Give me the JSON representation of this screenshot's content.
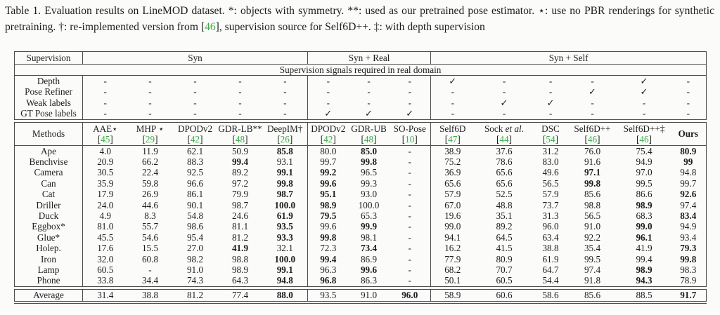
{
  "caption": {
    "segments": [
      {
        "text": "Table 1. Evaluation results on LineMOD dataset. *: objects with symmetry. **: used as our pretrained pose estimator. ⋆: use no PBR renderings for synthetic pretraining. †: re-implemented version from "
      },
      {
        "text": "["
      },
      {
        "text": "46"
      },
      {
        "text": "]"
      },
      {
        "text": ", supervision source for Self6D++. ‡: with depth supervision"
      }
    ]
  },
  "colors": {
    "cite_green": "#3aad4a",
    "rule_gray": "#4c4c4c"
  },
  "table": {
    "groups": [
      {
        "label": "Supervision",
        "span": 1
      },
      {
        "label": "Syn",
        "span": 5
      },
      {
        "label": "Syn + Real",
        "span": 3
      },
      {
        "label": "Syn + Self",
        "span": 6
      }
    ],
    "signals_note": "Supervision signals required in real domain",
    "signal_rows": [
      {
        "label": "Depth",
        "values": [
          "-",
          "-",
          "-",
          "-",
          "-",
          "-",
          "-",
          "-",
          "✓",
          "-",
          "-",
          "-",
          "✓",
          "-"
        ]
      },
      {
        "label": "Pose Refiner",
        "values": [
          "-",
          "-",
          "-",
          "-",
          "-",
          "-",
          "-",
          "-",
          "-",
          "-",
          "-",
          "✓",
          "✓",
          "-"
        ]
      },
      {
        "label": "Weak labels",
        "values": [
          "-",
          "-",
          "-",
          "-",
          "-",
          "-",
          "-",
          "-",
          "-",
          "✓",
          "✓",
          "-",
          "-",
          "-"
        ]
      },
      {
        "label": "GT Pose labels",
        "values": [
          "-",
          "-",
          "-",
          "-",
          "-",
          "✓",
          "✓",
          "✓",
          "-",
          "-",
          "-",
          "-",
          "-",
          "-"
        ]
      }
    ],
    "methods_label": "Methods",
    "methods": [
      {
        "name": "AAE⋆",
        "ref": "[45]"
      },
      {
        "name": "MHP ⋆",
        "ref": "[29]"
      },
      {
        "name": "DPODv2",
        "ref": "[42]"
      },
      {
        "name": "GDR-LB**",
        "ref": "[48]"
      },
      {
        "name": "DeepIM†",
        "ref": "[26]"
      },
      {
        "name": "DPODv2",
        "ref": "[42]"
      },
      {
        "name": "GDR-UB",
        "ref": "[48]"
      },
      {
        "name": "SO-Pose",
        "ref": "[10]"
      },
      {
        "name": "Self6D",
        "ref": "[47]"
      },
      {
        "name": "Sock",
        "name_italic": "et al.",
        "ref": "[44]"
      },
      {
        "name": "DSC",
        "ref": "[54]"
      },
      {
        "name": "Self6D++",
        "ref": "[46]"
      },
      {
        "name": "Self6D++‡",
        "ref": "[46]"
      },
      {
        "name": "Ours",
        "ref": "",
        "bold": true
      }
    ],
    "object_rows": [
      {
        "label": "Ape",
        "values": [
          "4.0",
          "11.9",
          "62.1",
          "50.9",
          "85.8",
          "80.0",
          "85.0",
          "-",
          "38.9",
          "37.6",
          "31.2",
          "76.0",
          "75.4",
          "80.9"
        ],
        "bold": [
          0,
          0,
          0,
          0,
          1,
          0,
          1,
          0,
          0,
          0,
          0,
          0,
          0,
          1
        ]
      },
      {
        "label": "Benchvise",
        "values": [
          "20.9",
          "66.2",
          "88.3",
          "99.4",
          "93.1",
          "99.7",
          "99.8",
          "-",
          "75.2",
          "78.6",
          "83.0",
          "91.6",
          "94.9",
          "99"
        ],
        "bold": [
          0,
          0,
          0,
          1,
          0,
          0,
          1,
          0,
          0,
          0,
          0,
          0,
          0,
          1
        ]
      },
      {
        "label": "Camera",
        "values": [
          "30.5",
          "22.4",
          "92.5",
          "89.2",
          "99.1",
          "99.2",
          "96.5",
          "-",
          "36.9",
          "65.6",
          "49.6",
          "97.1",
          "97.0",
          "94.8"
        ],
        "bold": [
          0,
          0,
          0,
          0,
          1,
          1,
          0,
          0,
          0,
          0,
          0,
          1,
          0,
          0
        ]
      },
      {
        "label": "Can",
        "values": [
          "35.9",
          "59.8",
          "96.6",
          "97.2",
          "99.8",
          "99.6",
          "99.3",
          "-",
          "65.6",
          "65.6",
          "56.5",
          "99.8",
          "99.5",
          "99.7"
        ],
        "bold": [
          0,
          0,
          0,
          0,
          1,
          1,
          0,
          0,
          0,
          0,
          0,
          1,
          0,
          0
        ]
      },
      {
        "label": "Cat",
        "values": [
          "17.9",
          "26.9",
          "86.1",
          "79.9",
          "98.7",
          "95.1",
          "93.0",
          "-",
          "57.9",
          "52.5",
          "57.9",
          "85.6",
          "86.6",
          "92.6"
        ],
        "bold": [
          0,
          0,
          0,
          0,
          1,
          1,
          0,
          0,
          0,
          0,
          0,
          0,
          0,
          1
        ]
      },
      {
        "label": "Driller",
        "values": [
          "24.0",
          "44.6",
          "90.1",
          "98.7",
          "100.0",
          "98.9",
          "100.0",
          "-",
          "67.0",
          "48.8",
          "73.7",
          "98.8",
          "98.9",
          "97.4"
        ],
        "bold": [
          0,
          0,
          0,
          0,
          1,
          1,
          0,
          0,
          0,
          0,
          0,
          0,
          1,
          0
        ]
      },
      {
        "label": "Duck",
        "values": [
          "4.9",
          "8.3",
          "54.8",
          "24.6",
          "61.9",
          "79.5",
          "65.3",
          "-",
          "19.6",
          "35.1",
          "31.3",
          "56.5",
          "68.3",
          "83.4"
        ],
        "bold": [
          0,
          0,
          0,
          0,
          1,
          1,
          0,
          0,
          0,
          0,
          0,
          0,
          0,
          1
        ]
      },
      {
        "label": "Eggbox*",
        "values": [
          "81.0",
          "55.7",
          "98.6",
          "81.1",
          "93.5",
          "99.6",
          "99.9",
          "-",
          "99.0",
          "89.2",
          "96.0",
          "91.0",
          "99.0",
          "94.9"
        ],
        "bold": [
          0,
          0,
          0,
          0,
          1,
          0,
          1,
          0,
          0,
          0,
          0,
          0,
          1,
          0
        ]
      },
      {
        "label": "Glue*",
        "values": [
          "45.5",
          "54.6",
          "95.4",
          "81.2",
          "93.3",
          "99.8",
          "98.1",
          "-",
          "94.1",
          "64.5",
          "63.4",
          "92.2",
          "96.1",
          "93.4"
        ],
        "bold": [
          0,
          0,
          0,
          0,
          1,
          1,
          0,
          0,
          0,
          0,
          0,
          0,
          1,
          0
        ]
      },
      {
        "label": "Holep.",
        "values": [
          "17.6",
          "15.5",
          "27.0",
          "41.9",
          "32.1",
          "72.3",
          "73.4",
          "-",
          "16.2",
          "41.5",
          "38.8",
          "35.4",
          "41.9",
          "79.3"
        ],
        "bold": [
          0,
          0,
          0,
          1,
          0,
          0,
          1,
          0,
          0,
          0,
          0,
          0,
          0,
          1
        ]
      },
      {
        "label": "Iron",
        "values": [
          "32.0",
          "60.8",
          "98.2",
          "98.8",
          "100.0",
          "99.4",
          "86.9",
          "-",
          "77.9",
          "80.9",
          "61.9",
          "99.5",
          "99.4",
          "99.8"
        ],
        "bold": [
          0,
          0,
          0,
          0,
          1,
          1,
          0,
          0,
          0,
          0,
          0,
          0,
          0,
          1
        ]
      },
      {
        "label": "Lamp",
        "values": [
          "60.5",
          "-",
          "91.0",
          "98.9",
          "99.1",
          "96.3",
          "99.6",
          "-",
          "68.2",
          "70.7",
          "64.7",
          "97.4",
          "98.9",
          "98.3"
        ],
        "bold": [
          0,
          0,
          0,
          0,
          1,
          0,
          1,
          0,
          0,
          0,
          0,
          0,
          1,
          0
        ]
      },
      {
        "label": "Phone",
        "values": [
          "33.8",
          "34.4",
          "74.3",
          "64.3",
          "94.8",
          "96.8",
          "86.3",
          "-",
          "50.1",
          "60.5",
          "54.4",
          "91.8",
          "94.3",
          "78.9"
        ],
        "bold": [
          0,
          0,
          0,
          0,
          1,
          1,
          0,
          0,
          0,
          0,
          0,
          0,
          1,
          0
        ]
      }
    ],
    "average_row": {
      "label": "Average",
      "values": [
        "31.4",
        "38.8",
        "81.2",
        "77.4",
        "88.0",
        "93.5",
        "91.0",
        "96.0",
        "58.9",
        "60.6",
        "58.6",
        "85.6",
        "88.5",
        "91.7"
      ],
      "bold": [
        0,
        0,
        0,
        0,
        1,
        0,
        0,
        1,
        0,
        0,
        0,
        0,
        0,
        1
      ]
    }
  }
}
